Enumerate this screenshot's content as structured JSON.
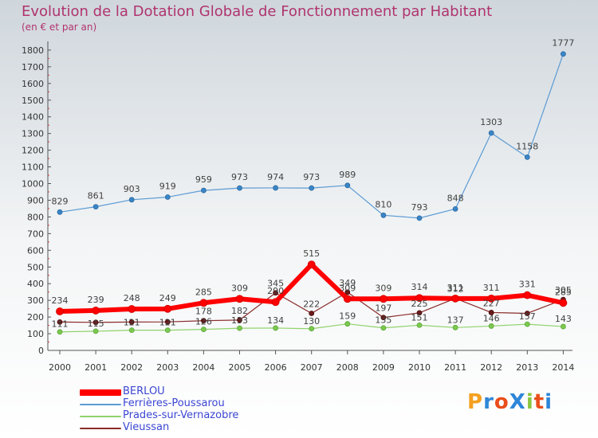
{
  "header": {
    "title": "Evolution de la Dotation Globale de Fonctionnement par Habitant",
    "subtitle": "(en € et par an)"
  },
  "logo": {
    "text": "ProXiti",
    "colors": [
      "#f4a020",
      "#2e86d8",
      "#e94e1b",
      "#2e86d8",
      "#8cc63f",
      "#e94e1b",
      "#2e86d8"
    ]
  },
  "chart_data": {
    "type": "line",
    "x": [
      "2000",
      "2001",
      "2002",
      "2003",
      "2004",
      "2005",
      "2006",
      "2007",
      "2008",
      "2009",
      "2010",
      "2011",
      "2012",
      "2013",
      "2014"
    ],
    "ylim": [
      0,
      1800
    ],
    "yticks": [
      0,
      100,
      200,
      300,
      400,
      500,
      600,
      700,
      800,
      900,
      1000,
      1100,
      1200,
      1300,
      1400,
      1500,
      1600,
      1700,
      1800
    ],
    "grid": false,
    "legend_position": "bottom-left",
    "series": [
      {
        "name": "Ferrières-Poussarou",
        "color": "#5b9bd5",
        "values": [
          829,
          861,
          903,
          919,
          959,
          973,
          974,
          973,
          989,
          810,
          793,
          848,
          1303,
          1158,
          1777
        ]
      },
      {
        "name": "Prades-sur-Vernazobre",
        "color": "#8fd36b",
        "values": [
          111,
          115,
          121,
          121,
          126,
          133,
          134,
          130,
          159,
          135,
          151,
          137,
          146,
          157,
          143
        ]
      },
      {
        "name": "Vieussan",
        "color": "#8a2b2b",
        "values": [
          170,
          168,
          170,
          171,
          178,
          182,
          345,
          222,
          349,
          197,
          225,
          312,
          227,
          222,
          305
        ]
      },
      {
        "name": "BERLOU",
        "color": "#ff0000",
        "values": [
          234,
          239,
          248,
          249,
          285,
          309,
          290,
          515,
          309,
          309,
          314,
          311,
          311,
          331,
          285
        ]
      }
    ],
    "labels": {
      "Ferrières-Poussarou": [
        "829",
        "861",
        "903",
        "919",
        "959",
        "973",
        "974",
        "973",
        "989",
        "810",
        "793",
        "848",
        "1303",
        "1158",
        "1777"
      ],
      "Prades-sur-Vernazobre": [
        "111",
        "115",
        "121",
        "121",
        "126",
        "133",
        "134",
        "130",
        "159",
        "135",
        "151",
        "137",
        "146",
        "157",
        "143"
      ],
      "Vieussan": [
        "",
        "",
        "",
        "",
        "178",
        "182",
        "345",
        "222",
        "349",
        "197",
        "225",
        "312",
        "227",
        "",
        "305"
      ],
      "BERLOU": [
        "234",
        "239",
        "248",
        "249",
        "285",
        "309",
        "290",
        "515",
        "309",
        "309",
        "314",
        "311",
        "311",
        "331",
        "285"
      ]
    }
  },
  "legend": [
    {
      "name": "BERLOU",
      "color": "#ff0000",
      "thickness": 8
    },
    {
      "name": "Ferrières-Poussarou",
      "color": "#5b9bd5",
      "thickness": 2
    },
    {
      "name": "Prades-sur-Vernazobre",
      "color": "#8fd36b",
      "thickness": 2
    },
    {
      "name": "Vieussan",
      "color": "#8a2b2b",
      "thickness": 2
    }
  ]
}
